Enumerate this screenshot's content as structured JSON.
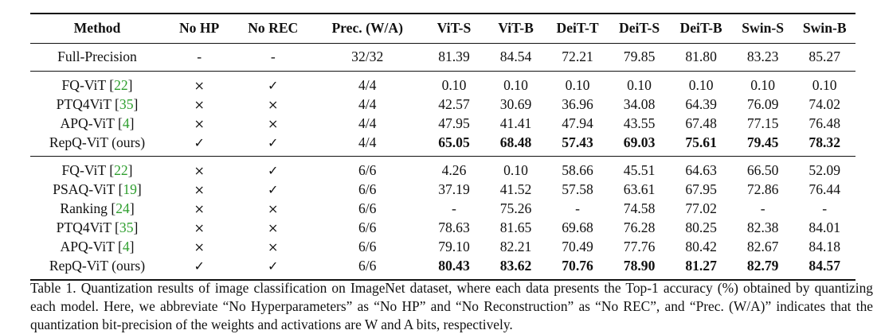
{
  "table": {
    "columns": [
      "Method",
      "No HP",
      "No REC",
      "Prec. (W/A)",
      "ViT-S",
      "ViT-B",
      "DeiT-T",
      "DeiT-S",
      "DeiT-B",
      "Swin-S",
      "Swin-B"
    ],
    "full_precision": {
      "method": "Full-Precision",
      "no_hp": "-",
      "no_rec": "-",
      "prec": "32/32",
      "values": [
        "81.39",
        "84.54",
        "72.21",
        "79.85",
        "81.80",
        "83.23",
        "85.27"
      ]
    },
    "group_4bit": [
      {
        "name": "FQ-ViT",
        "ref": "22",
        "no_hp": "×",
        "no_rec": "✓",
        "prec": "4/4",
        "values": [
          "0.10",
          "0.10",
          "0.10",
          "0.10",
          "0.10",
          "0.10",
          "0.10"
        ],
        "bold": false
      },
      {
        "name": "PTQ4ViT",
        "ref": "35",
        "no_hp": "×",
        "no_rec": "×",
        "prec": "4/4",
        "values": [
          "42.57",
          "30.69",
          "36.96",
          "34.08",
          "64.39",
          "76.09",
          "74.02"
        ],
        "bold": false
      },
      {
        "name": "APQ-ViT",
        "ref": "4",
        "no_hp": "×",
        "no_rec": "×",
        "prec": "4/4",
        "values": [
          "47.95",
          "41.41",
          "47.94",
          "43.55",
          "67.48",
          "77.15",
          "76.48"
        ],
        "bold": false
      },
      {
        "name": "RepQ-ViT (ours)",
        "ref": "",
        "no_hp": "✓",
        "no_rec": "✓",
        "prec": "4/4",
        "values": [
          "65.05",
          "68.48",
          "57.43",
          "69.03",
          "75.61",
          "79.45",
          "78.32"
        ],
        "bold": true
      }
    ],
    "group_6bit": [
      {
        "name": "FQ-ViT",
        "ref": "22",
        "no_hp": "×",
        "no_rec": "✓",
        "prec": "6/6",
        "values": [
          "4.26",
          "0.10",
          "58.66",
          "45.51",
          "64.63",
          "66.50",
          "52.09"
        ],
        "bold": false
      },
      {
        "name": "PSAQ-ViT",
        "ref": "19",
        "no_hp": "×",
        "no_rec": "✓",
        "prec": "6/6",
        "values": [
          "37.19",
          "41.52",
          "57.58",
          "63.61",
          "67.95",
          "72.86",
          "76.44"
        ],
        "bold": false
      },
      {
        "name": "Ranking",
        "ref": "24",
        "no_hp": "×",
        "no_rec": "×",
        "prec": "6/6",
        "values": [
          "-",
          "75.26",
          "-",
          "74.58",
          "77.02",
          "-",
          "-"
        ],
        "bold": false
      },
      {
        "name": "PTQ4ViT",
        "ref": "35",
        "no_hp": "×",
        "no_rec": "×",
        "prec": "6/6",
        "values": [
          "78.63",
          "81.65",
          "69.68",
          "76.28",
          "80.25",
          "82.38",
          "84.01"
        ],
        "bold": false
      },
      {
        "name": "APQ-ViT",
        "ref": "4",
        "no_hp": "×",
        "no_rec": "×",
        "prec": "6/6",
        "values": [
          "79.10",
          "82.21",
          "70.49",
          "77.76",
          "80.42",
          "82.67",
          "84.18"
        ],
        "bold": false
      },
      {
        "name": "RepQ-ViT (ours)",
        "ref": "",
        "no_hp": "✓",
        "no_rec": "✓",
        "prec": "6/6",
        "values": [
          "80.43",
          "83.62",
          "70.76",
          "78.90",
          "81.27",
          "82.79",
          "84.57"
        ],
        "bold": true
      }
    ]
  },
  "caption": "Table 1. Quantization results of image classification on ImageNet dataset, where each data presents the Top-1 accuracy (%) obtained by quantizing each model. Here, we abbreviate “No Hyperparameters” as “No HP” and “No Reconstruction” as “No REC”, and “Prec. (W/A)” indicates that the quantization bit-precision of the weights and activations are W and A bits, respectively."
}
